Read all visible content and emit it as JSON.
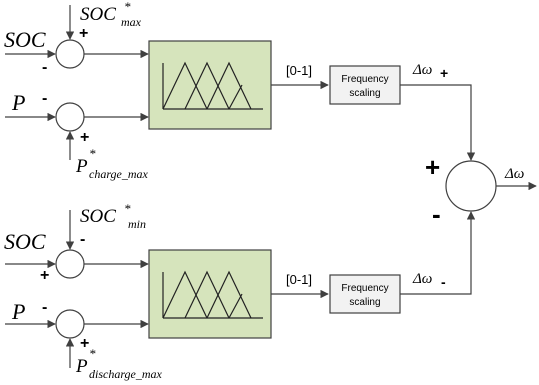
{
  "inputs": {
    "top_soc": "SOC",
    "top_soc_ref": "SOC",
    "top_soc_ref_sup": "*",
    "top_soc_ref_sub": "max",
    "top_soc_sign_ref": "+",
    "top_soc_sign_in": "-",
    "top_p": "P",
    "top_p_sign_in": "-",
    "top_p_ref": "P",
    "top_p_ref_sup": "*",
    "top_p_ref_sub": "charge_max",
    "top_p_sign_ref": "+",
    "bot_soc": "SOC",
    "bot_soc_ref": "SOC",
    "bot_soc_ref_sup": "*",
    "bot_soc_ref_sub": "min",
    "bot_soc_sign_ref": "-",
    "bot_soc_sign_in": "+",
    "bot_p": "P",
    "bot_p_sign_in": "-",
    "bot_p_ref": "P",
    "bot_p_ref_sup": "*",
    "bot_p_ref_sub": "discharge_max",
    "bot_p_sign_ref": "+"
  },
  "ranges": {
    "top": "[0-1]",
    "bottom": "[0-1]"
  },
  "scaling": {
    "line1": "Frequency",
    "line2": "scaling"
  },
  "outputs": {
    "delta_plus": "Δω",
    "delta_plus_sub": "+",
    "delta_minus": "Δω",
    "delta_minus_sub": "-",
    "final": "Δω",
    "sum_plus": "+",
    "sum_minus": "-"
  },
  "colors": {
    "fuzzy_fill": "#d6e4bc",
    "scaling_fill": "#f2f2f2",
    "line": "#595959"
  }
}
